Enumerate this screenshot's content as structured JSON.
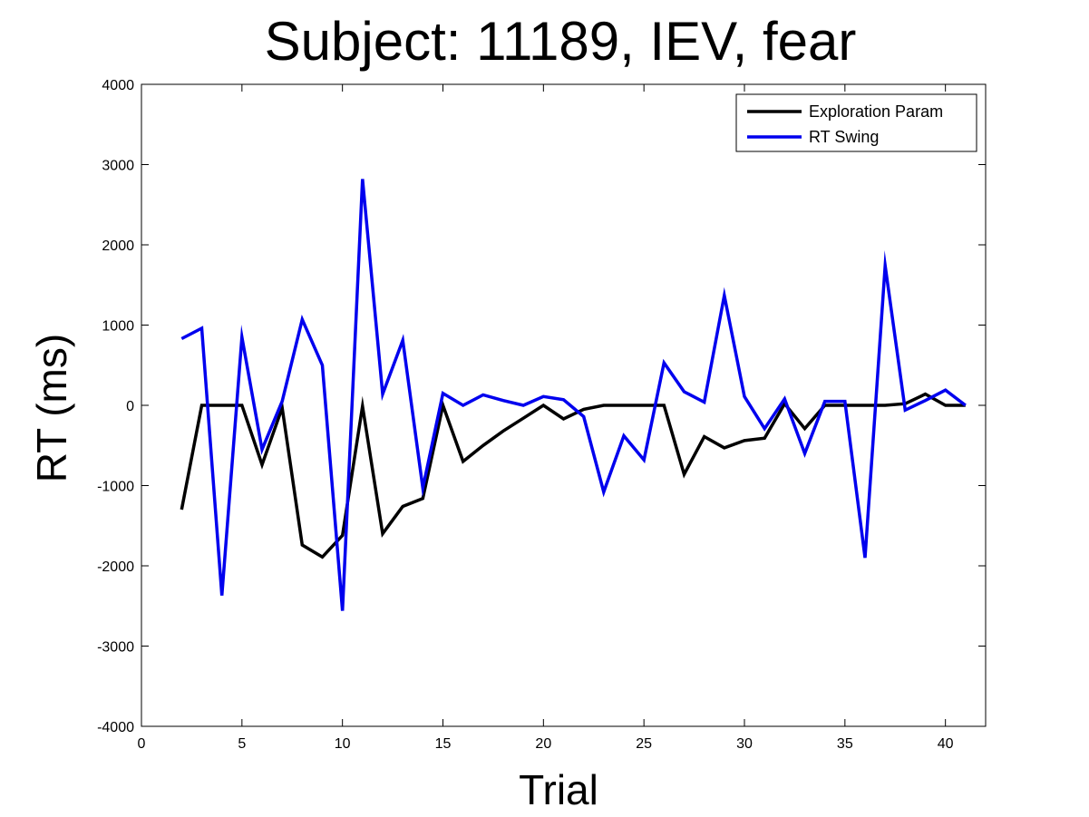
{
  "chart_data": {
    "type": "line",
    "title": "Subject: 11189, IEV, fear",
    "xlabel": "Trial",
    "ylabel": "RT (ms)",
    "xlim": [
      0,
      42
    ],
    "ylim": [
      -4000,
      4000
    ],
    "xticks": [
      0,
      5,
      10,
      15,
      20,
      25,
      30,
      35,
      40
    ],
    "yticks": [
      -4000,
      -3000,
      -2000,
      -1000,
      0,
      1000,
      2000,
      3000,
      4000
    ],
    "grid": false,
    "legend_position": "top-right",
    "x": [
      2,
      3,
      4,
      5,
      6,
      7,
      8,
      9,
      10,
      11,
      12,
      13,
      14,
      15,
      16,
      17,
      18,
      19,
      20,
      21,
      22,
      23,
      24,
      25,
      26,
      27,
      28,
      29,
      30,
      31,
      32,
      33,
      34,
      35,
      36,
      37,
      38,
      39,
      40,
      41
    ],
    "series": [
      {
        "name": "Exploration Param",
        "color": "#000000",
        "values": [
          -1300,
          0,
          0,
          0,
          -740,
          -30,
          -1740,
          -1890,
          -1620,
          -10,
          -1600,
          -1260,
          -1160,
          0,
          -700,
          -500,
          -320,
          -160,
          0,
          -170,
          -50,
          0,
          0,
          0,
          0,
          -860,
          -390,
          -530,
          -440,
          -410,
          20,
          -290,
          0,
          0,
          0,
          0,
          20,
          140,
          0,
          0
        ]
      },
      {
        "name": "RT Swing",
        "color": "#0000ee",
        "values": [
          830,
          960,
          -2370,
          850,
          -550,
          50,
          1070,
          500,
          -2560,
          2820,
          140,
          810,
          -1030,
          150,
          0,
          130,
          60,
          0,
          110,
          70,
          -140,
          -1080,
          -380,
          -680,
          530,
          170,
          40,
          1370,
          110,
          -290,
          80,
          -600,
          50,
          50,
          -1900,
          1740,
          -60,
          60,
          190,
          0
        ]
      }
    ]
  }
}
